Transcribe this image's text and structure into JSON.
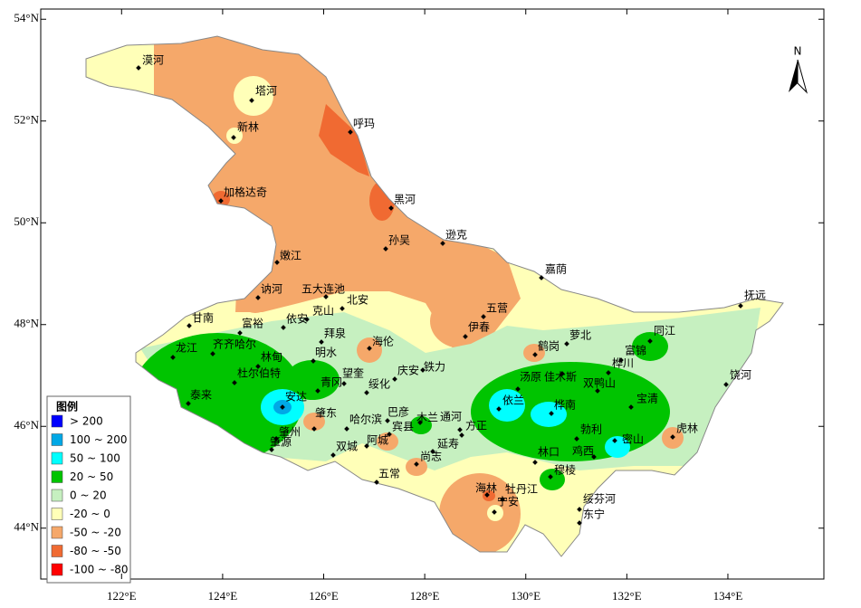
{
  "map": {
    "xlim": [
      120.4,
      135.9
    ],
    "ylim": [
      43.0,
      54.2
    ],
    "xticks": [
      {
        "value": 122,
        "label": "122°E"
      },
      {
        "value": 124,
        "label": "124°E"
      },
      {
        "value": 126,
        "label": "126°E"
      },
      {
        "value": 128,
        "label": "128°E"
      },
      {
        "value": 130,
        "label": "130°E"
      },
      {
        "value": 132,
        "label": "132°E"
      },
      {
        "value": 134,
        "label": "134°E"
      }
    ],
    "yticks": [
      {
        "value": 54,
        "label": "54°N"
      },
      {
        "value": 52,
        "label": "52°N"
      },
      {
        "value": 50,
        "label": "50°N"
      },
      {
        "value": 48,
        "label": "48°N"
      },
      {
        "value": 46,
        "label": "46°N"
      },
      {
        "value": 44,
        "label": "44°N"
      }
    ],
    "north": "N",
    "legend": {
      "title": "图例",
      "items": [
        {
          "label": "> 200",
          "color": "#0000ff"
        },
        {
          "label": "100 ~ 200",
          "color": "#00a8e6"
        },
        {
          "label": "50 ~ 100",
          "color": "#00ffff"
        },
        {
          "label": "20 ~ 50",
          "color": "#00c400"
        },
        {
          "label": "0 ~ 20",
          "color": "#c6f0c0"
        },
        {
          "label": "-20 ~ 0",
          "color": "#ffffb8"
        },
        {
          "label": "-50 ~ -20",
          "color": "#f5a86a"
        },
        {
          "label": "-80 ~ -50",
          "color": "#f06a32"
        },
        {
          "label": "-100 ~ -80",
          "color": "#ff0000"
        }
      ]
    },
    "cities": [
      "漠河",
      "塔河",
      "新林",
      "呼玛",
      "加格达奇",
      "黑河",
      "嫩江",
      "孙吴",
      "逊克",
      "嘉荫",
      "抚远",
      "讷河",
      "五大连池",
      "北安",
      "甘南",
      "富裕",
      "克山",
      "依安",
      "五营",
      "伊春",
      "齐齐哈尔",
      "龙江",
      "林甸",
      "拜泉",
      "明水",
      "海伦",
      "萝北",
      "鹤岗",
      "同江",
      "富锦",
      "桦川",
      "汤原",
      "佳木斯",
      "杜尔伯特",
      "望奎",
      "庆安",
      "铁力",
      "青冈",
      "绥化",
      "双鸭山",
      "依兰",
      "桦南",
      "宝清",
      "饶河",
      "泰来",
      "安达",
      "巴彦",
      "哈尔滨",
      "肇东",
      "木兰",
      "通河",
      "宾县",
      "方正",
      "勃利",
      "虎林",
      "肇州",
      "肇源",
      "阿城",
      "双城",
      "延寿",
      "鸡西",
      "密山",
      "林口",
      "尚志",
      "穆棱",
      "五常",
      "海林",
      "牡丹江",
      "宁安",
      "绥芬河",
      "东宁"
    ]
  }
}
